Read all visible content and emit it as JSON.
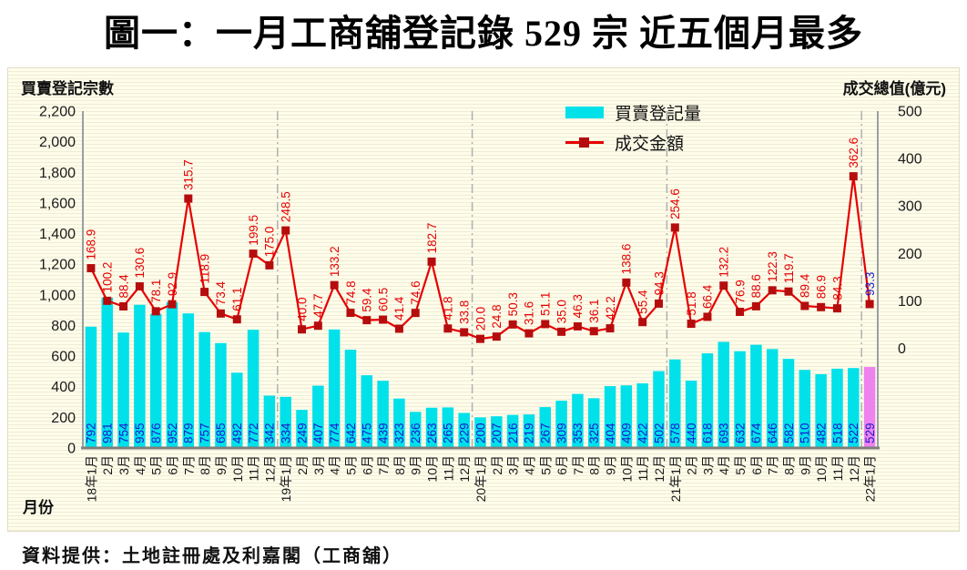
{
  "title": "圖一：一月工商舖登記錄 529 宗  近五個月最多",
  "footer": "資料提供：土地註冊處及利嘉閣（工商舖）",
  "axis_left_title": "買賣登記宗數",
  "axis_right_title": "成交總值(億元)",
  "x_axis_title": "月份",
  "legend": {
    "bars": "買賣登記量",
    "line": "成交金額"
  },
  "colors": {
    "bar": "#00e1ea",
    "bar_highlight": "#ee82ee",
    "line": "#e60000",
    "marker": "#b50d0d",
    "bar_label": "#1a1ad1",
    "line_label": "#e60000",
    "line_label_highlight": "#1a1ad1",
    "axis_text": "#1a1a1a",
    "spine": "#9aa0a0",
    "bottom_spine": "#7f7f7f",
    "divider": "#b0b0b0",
    "panel_bg": "#fffdea"
  },
  "chart_data": {
    "type": "bar",
    "subtype": "bar+line combo, dual axis",
    "categories": [
      "18年1月",
      "2月",
      "3月",
      "4月",
      "5月",
      "6月",
      "7月",
      "8月",
      "9月",
      "10月",
      "11月",
      "12月",
      "19年1月",
      "2月",
      "3月",
      "4月",
      "5月",
      "6月",
      "7月",
      "8月",
      "9月",
      "10月",
      "11月",
      "12月",
      "20年1月",
      "2月",
      "3月",
      "4月",
      "5月",
      "6月",
      "7月",
      "8月",
      "9月",
      "10月",
      "11月",
      "12月",
      "21年1月",
      "2月",
      "3月",
      "4月",
      "5月",
      "6月",
      "7月",
      "8月",
      "9月",
      "10月",
      "11月",
      "12月",
      "22年1月"
    ],
    "series": [
      {
        "name": "買賣登記量",
        "type": "bar",
        "axis": "left",
        "values": [
          792,
          981,
          754,
          935,
          876,
          952,
          879,
          757,
          685,
          492,
          772,
          342,
          334,
          249,
          407,
          774,
          642,
          475,
          439,
          323,
          236,
          263,
          265,
          229,
          200,
          207,
          216,
          219,
          267,
          309,
          353,
          325,
          404,
          409,
          422,
          502,
          578,
          440,
          618,
          693,
          632,
          674,
          646,
          582,
          510,
          482,
          518,
          522,
          529
        ]
      },
      {
        "name": "成交金額",
        "type": "line",
        "axis": "right",
        "values": [
          168.9,
          100.2,
          88.4,
          130.6,
          78.1,
          92.9,
          315.7,
          118.9,
          73.4,
          61.1,
          199.5,
          175.0,
          248.5,
          40.0,
          47.7,
          133.2,
          74.8,
          59.4,
          60.5,
          41.4,
          74.6,
          182.7,
          41.8,
          33.8,
          20.0,
          24.8,
          50.3,
          31.6,
          51.1,
          35.0,
          46.3,
          36.1,
          42.2,
          138.6,
          55.4,
          94.3,
          254.6,
          51.8,
          66.4,
          132.2,
          76.9,
          88.6,
          122.3,
          119.7,
          89.4,
          86.9,
          84.3,
          362.6,
          93.3
        ]
      }
    ],
    "left_axis": {
      "label": "買賣登記宗數",
      "ticks": [
        0,
        200,
        400,
        600,
        800,
        1000,
        1200,
        1400,
        1600,
        1800,
        2000,
        2200
      ],
      "range": [
        0,
        2200
      ]
    },
    "right_axis": {
      "label": "成交總值(億元)",
      "ticks": [
        0,
        100,
        200,
        300,
        400,
        500
      ],
      "range": [
        -210,
        500
      ]
    },
    "xlabel": "月份",
    "highlight_last": true,
    "grid": "horizontal pinstripes, dash-dot year dividers",
    "legend_position": "top-center-right inside plot"
  }
}
